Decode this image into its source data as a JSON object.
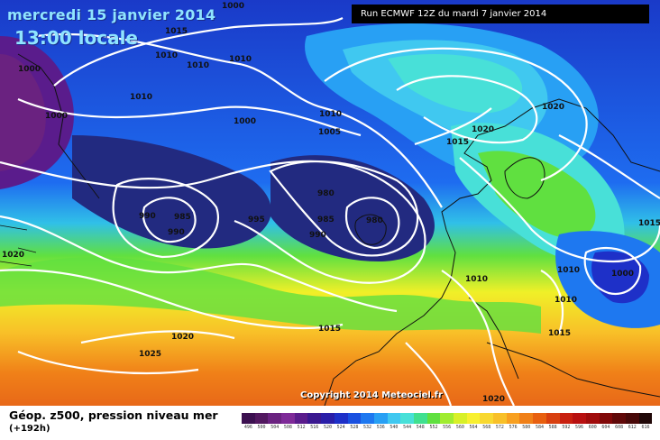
{
  "header": {
    "date": "mercredi 15 janvier 2014",
    "time": "13:00 locale",
    "run": "Run ECMWF 12Z du mardi 7 janvier 2014"
  },
  "footer": {
    "copyright": "Copyright 2014 Meteociel.fr",
    "field_title": "Géop. z500, pression niveau mer",
    "step": "(+192h)"
  },
  "legend": {
    "values": [
      "496",
      "500",
      "504",
      "508",
      "512",
      "516",
      "520",
      "524",
      "528",
      "532",
      "536",
      "540",
      "544",
      "548",
      "552",
      "556",
      "560",
      "564",
      "568",
      "572",
      "576",
      "580",
      "584",
      "588",
      "592",
      "596",
      "600",
      "604",
      "608",
      "612",
      "616"
    ],
    "colors": [
      "#3c1050",
      "#521860",
      "#6a2280",
      "#7e2a98",
      "#5a1c8c",
      "#3a1890",
      "#2a1ea8",
      "#1e30c8",
      "#1a50e0",
      "#1e78f0",
      "#28a0f4",
      "#40c8f0",
      "#48e0d8",
      "#40e090",
      "#60e040",
      "#a0ec30",
      "#d8f028",
      "#f8f030",
      "#f8d830",
      "#f8c028",
      "#f8a020",
      "#f08018",
      "#e86010",
      "#d84010",
      "#c82010",
      "#b81010",
      "#a00c0c",
      "#800808",
      "#600808",
      "#480808",
      "#200808"
    ]
  },
  "isobars": [
    {
      "value": "1000",
      "id": "a"
    },
    {
      "value": "1015",
      "id": "b"
    },
    {
      "value": "1010",
      "id": "c"
    },
    {
      "value": "1010",
      "id": "d"
    },
    {
      "value": "1010",
      "id": "e"
    },
    {
      "value": "1000",
      "id": "f"
    },
    {
      "value": "1010",
      "id": "g"
    },
    {
      "value": "1000",
      "id": "h"
    },
    {
      "value": "1000",
      "id": "i"
    },
    {
      "value": "1010",
      "id": "j"
    },
    {
      "value": "1005",
      "id": "k"
    },
    {
      "value": "1015",
      "id": "l"
    },
    {
      "value": "1020",
      "id": "m"
    },
    {
      "value": "1020",
      "id": "n"
    },
    {
      "value": "980",
      "id": "o"
    },
    {
      "value": "990",
      "id": "p"
    },
    {
      "value": "985",
      "id": "q"
    },
    {
      "value": "990",
      "id": "r"
    },
    {
      "value": "995",
      "id": "s"
    },
    {
      "value": "985",
      "id": "t"
    },
    {
      "value": "980",
      "id": "u"
    },
    {
      "value": "990",
      "id": "v"
    },
    {
      "value": "1020",
      "id": "w"
    },
    {
      "value": "1015",
      "id": "x"
    },
    {
      "value": "1010",
      "id": "y"
    },
    {
      "value": "1010",
      "id": "z"
    },
    {
      "value": "1010",
      "id": "aa"
    },
    {
      "value": "1000",
      "id": "ab"
    },
    {
      "value": "1015",
      "id": "ac"
    },
    {
      "value": "1015",
      "id": "ad"
    },
    {
      "value": "1020",
      "id": "ae"
    },
    {
      "value": "1025",
      "id": "af"
    },
    {
      "value": "1020",
      "id": "ag"
    }
  ]
}
